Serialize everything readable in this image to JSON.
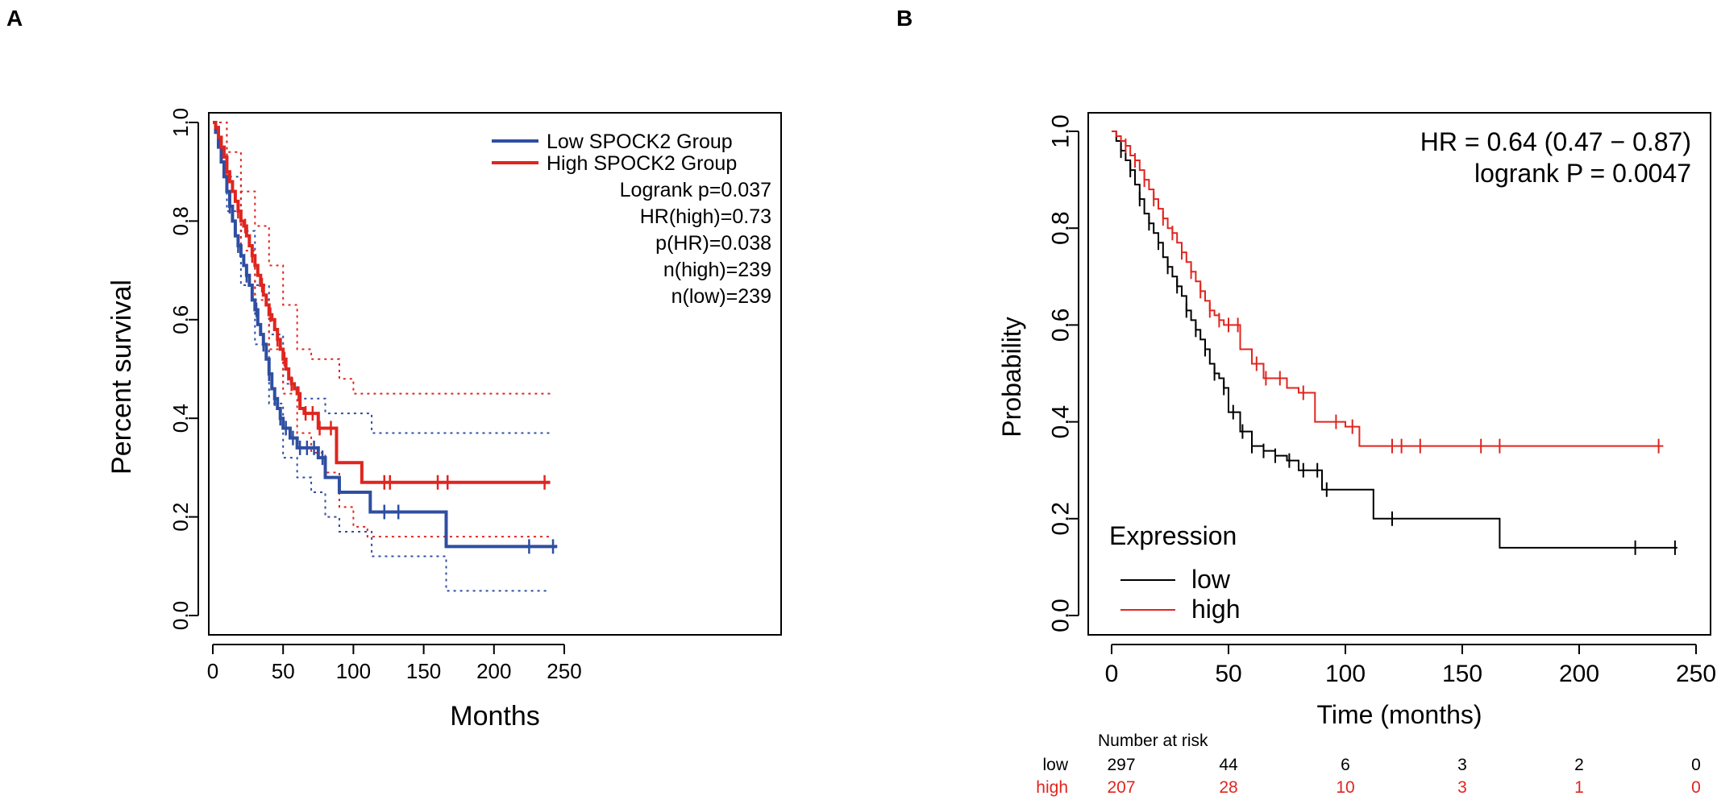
{
  "panel_labels": {
    "a": "A",
    "b": "B"
  },
  "colors": {
    "low_a": "#2e4ea2",
    "high_a": "#e0251f",
    "low_b": "#000000",
    "high_b": "#e0251f",
    "axis": "#000000"
  },
  "chart_data": [
    {
      "type": "line",
      "subtype": "kaplan-meier",
      "panel": "A",
      "xlabel": "Months",
      "ylabel": "Percent survival",
      "xlim": [
        0,
        250
      ],
      "ylim": [
        0,
        1
      ],
      "xticks": [
        0,
        50,
        100,
        150,
        200,
        250
      ],
      "yticks": [
        0.0,
        0.2,
        0.4,
        0.6,
        0.8,
        1.0
      ],
      "xtick_labels": [
        "0",
        "50",
        "100",
        "150",
        "200",
        "250"
      ],
      "ytick_labels": [
        "0.0",
        "0.2",
        "0.4",
        "0.6",
        "0.8",
        "1.0"
      ],
      "legend": {
        "placement": "top-right",
        "low_label": "Low SPOCK2 Group",
        "high_label": "High SPOCK2 Group"
      },
      "stats": [
        "Logrank p=0.037",
        "HR(high)=0.73",
        "p(HR)=0.038",
        "n(high)=239",
        "n(low)=239"
      ],
      "series": [
        {
          "name": "Low SPOCK2 Group",
          "role": "survival",
          "color": "#2e4ea2",
          "x": [
            0,
            2,
            4,
            6,
            8,
            10,
            12,
            14,
            16,
            18,
            20,
            22,
            24,
            26,
            28,
            30,
            32,
            34,
            36,
            38,
            40,
            42,
            44,
            46,
            48,
            50,
            55,
            60,
            65,
            70,
            75,
            80,
            90,
            100,
            112,
            140,
            166,
            245
          ],
          "y": [
            1.0,
            0.98,
            0.95,
            0.92,
            0.89,
            0.86,
            0.83,
            0.8,
            0.77,
            0.75,
            0.73,
            0.71,
            0.69,
            0.67,
            0.64,
            0.62,
            0.59,
            0.57,
            0.55,
            0.52,
            0.49,
            0.46,
            0.44,
            0.42,
            0.4,
            0.38,
            0.36,
            0.34,
            0.34,
            0.34,
            0.32,
            0.28,
            0.25,
            0.25,
            0.21,
            0.21,
            0.14,
            0.14
          ],
          "censor_x": [
            12,
            18,
            24,
            31,
            36,
            40,
            44,
            48,
            52,
            57,
            62,
            67,
            72,
            78,
            122,
            132,
            225,
            242
          ]
        },
        {
          "name": "High SPOCK2 Group",
          "role": "survival",
          "color": "#e0251f",
          "x": [
            0,
            2,
            4,
            6,
            8,
            10,
            12,
            14,
            16,
            18,
            20,
            22,
            24,
            26,
            28,
            30,
            32,
            34,
            36,
            38,
            40,
            42,
            44,
            46,
            48,
            50,
            52,
            54,
            56,
            58,
            60,
            62,
            65,
            70,
            75,
            80,
            88,
            98,
            106,
            115,
            140,
            170,
            240
          ],
          "y": [
            1.0,
            0.99,
            0.97,
            0.95,
            0.93,
            0.9,
            0.88,
            0.86,
            0.84,
            0.82,
            0.8,
            0.79,
            0.77,
            0.75,
            0.73,
            0.71,
            0.69,
            0.67,
            0.65,
            0.63,
            0.61,
            0.6,
            0.58,
            0.56,
            0.54,
            0.52,
            0.5,
            0.48,
            0.47,
            0.46,
            0.45,
            0.42,
            0.41,
            0.41,
            0.38,
            0.38,
            0.31,
            0.31,
            0.27,
            0.27,
            0.27,
            0.27,
            0.27
          ],
          "censor_x": [
            18,
            23,
            28,
            35,
            41,
            46,
            51,
            56,
            61,
            66,
            71,
            76,
            84,
            122,
            126,
            160,
            167,
            236
          ]
        },
        {
          "name": "Low 95% CI upper",
          "role": "ci",
          "color": "#2e4ea2",
          "x": [
            0,
            10,
            20,
            30,
            40,
            50,
            60,
            70,
            80,
            90,
            110,
            113,
            140,
            166,
            170,
            240
          ],
          "y": [
            1.0,
            0.89,
            0.78,
            0.67,
            0.57,
            0.47,
            0.44,
            0.44,
            0.41,
            0.41,
            0.41,
            0.37,
            0.37,
            0.37,
            0.37,
            0.37
          ]
        },
        {
          "name": "Low 95% CI lower",
          "role": "ci",
          "color": "#2e4ea2",
          "x": [
            0,
            10,
            20,
            30,
            40,
            50,
            60,
            70,
            80,
            90,
            110,
            113,
            140,
            166,
            170,
            240
          ],
          "y": [
            1.0,
            0.82,
            0.67,
            0.55,
            0.43,
            0.32,
            0.28,
            0.25,
            0.2,
            0.17,
            0.17,
            0.12,
            0.12,
            0.05,
            0.05,
            0.05
          ]
        },
        {
          "name": "High 95% CI upper",
          "role": "ci",
          "color": "#e0251f",
          "x": [
            0,
            10,
            20,
            30,
            40,
            50,
            60,
            70,
            80,
            90,
            100,
            110,
            140,
            170,
            240
          ],
          "y": [
            1.0,
            0.94,
            0.86,
            0.79,
            0.71,
            0.63,
            0.54,
            0.52,
            0.52,
            0.48,
            0.45,
            0.45,
            0.45,
            0.45,
            0.45
          ]
        },
        {
          "name": "High 95% CI lower",
          "role": "ci",
          "color": "#e0251f",
          "x": [
            0,
            10,
            20,
            30,
            40,
            50,
            60,
            70,
            80,
            90,
            100,
            110,
            140,
            170,
            240
          ],
          "y": [
            1.0,
            0.86,
            0.74,
            0.64,
            0.54,
            0.45,
            0.37,
            0.33,
            0.29,
            0.22,
            0.18,
            0.16,
            0.16,
            0.16,
            0.16
          ]
        }
      ]
    },
    {
      "type": "line",
      "subtype": "kaplan-meier",
      "panel": "B",
      "xlabel": "Time (months)",
      "ylabel": "Probability",
      "xlim": [
        0,
        250
      ],
      "ylim": [
        0,
        1
      ],
      "xticks": [
        0,
        50,
        100,
        150,
        200,
        250
      ],
      "yticks": [
        0.0,
        0.2,
        0.4,
        0.6,
        0.8,
        1.0
      ],
      "xtick_labels": [
        "0",
        "50",
        "100",
        "150",
        "200",
        "250"
      ],
      "ytick_labels": [
        "0.0",
        "0.2",
        "0.4",
        "0.6",
        "0.8",
        "1.0"
      ],
      "annotation": [
        "HR = 0.64 (0.47 − 0.87)",
        "logrank P = 0.0047"
      ],
      "legend": {
        "placement": "bottom-left",
        "title": "Expression",
        "low_label": "low",
        "high_label": "high"
      },
      "series": [
        {
          "name": "low",
          "color": "#000000",
          "x": [
            0,
            2,
            4,
            6,
            8,
            10,
            12,
            14,
            16,
            18,
            20,
            22,
            24,
            26,
            28,
            30,
            32,
            34,
            36,
            38,
            40,
            42,
            44,
            46,
            48,
            50,
            55,
            60,
            65,
            70,
            75,
            80,
            90,
            100,
            112,
            140,
            166,
            242
          ],
          "y": [
            1.0,
            0.98,
            0.96,
            0.94,
            0.92,
            0.89,
            0.86,
            0.83,
            0.81,
            0.79,
            0.77,
            0.74,
            0.72,
            0.7,
            0.68,
            0.66,
            0.63,
            0.61,
            0.59,
            0.57,
            0.55,
            0.52,
            0.5,
            0.49,
            0.47,
            0.42,
            0.38,
            0.35,
            0.34,
            0.33,
            0.32,
            0.3,
            0.26,
            0.26,
            0.2,
            0.2,
            0.14,
            0.14
          ],
          "censor_x": [
            4,
            8,
            12,
            16,
            20,
            24,
            28,
            32,
            36,
            40,
            44,
            48,
            52,
            56,
            60,
            65,
            70,
            76,
            82,
            88,
            92,
            120,
            224,
            241
          ]
        },
        {
          "name": "high",
          "color": "#e0251f",
          "x": [
            0,
            2,
            4,
            6,
            8,
            10,
            12,
            14,
            16,
            18,
            20,
            22,
            24,
            26,
            28,
            30,
            32,
            34,
            36,
            38,
            40,
            42,
            44,
            46,
            48,
            50,
            55,
            60,
            65,
            70,
            75,
            80,
            87,
            90,
            95,
            100,
            106,
            120,
            150,
            236
          ],
          "y": [
            1.0,
            0.99,
            0.98,
            0.97,
            0.95,
            0.94,
            0.92,
            0.9,
            0.88,
            0.86,
            0.84,
            0.82,
            0.8,
            0.79,
            0.77,
            0.75,
            0.73,
            0.71,
            0.69,
            0.67,
            0.65,
            0.63,
            0.62,
            0.61,
            0.6,
            0.6,
            0.55,
            0.52,
            0.49,
            0.49,
            0.47,
            0.46,
            0.4,
            0.4,
            0.4,
            0.39,
            0.35,
            0.35,
            0.35,
            0.35
          ],
          "censor_x": [
            6,
            10,
            14,
            18,
            22,
            26,
            30,
            34,
            38,
            42,
            46,
            50,
            54,
            62,
            66,
            72,
            82,
            96,
            103,
            120,
            124,
            132,
            158,
            166,
            234
          ]
        }
      ],
      "number_at_risk": {
        "title": "Number at risk",
        "rows": [
          {
            "label": "low",
            "color": "#000000",
            "values": [
              "297",
              "44",
              "6",
              "3",
              "2",
              "0"
            ]
          },
          {
            "label": "high",
            "color": "#e0251f",
            "values": [
              "207",
              "28",
              "10",
              "3",
              "1",
              "0"
            ]
          }
        ]
      }
    }
  ]
}
